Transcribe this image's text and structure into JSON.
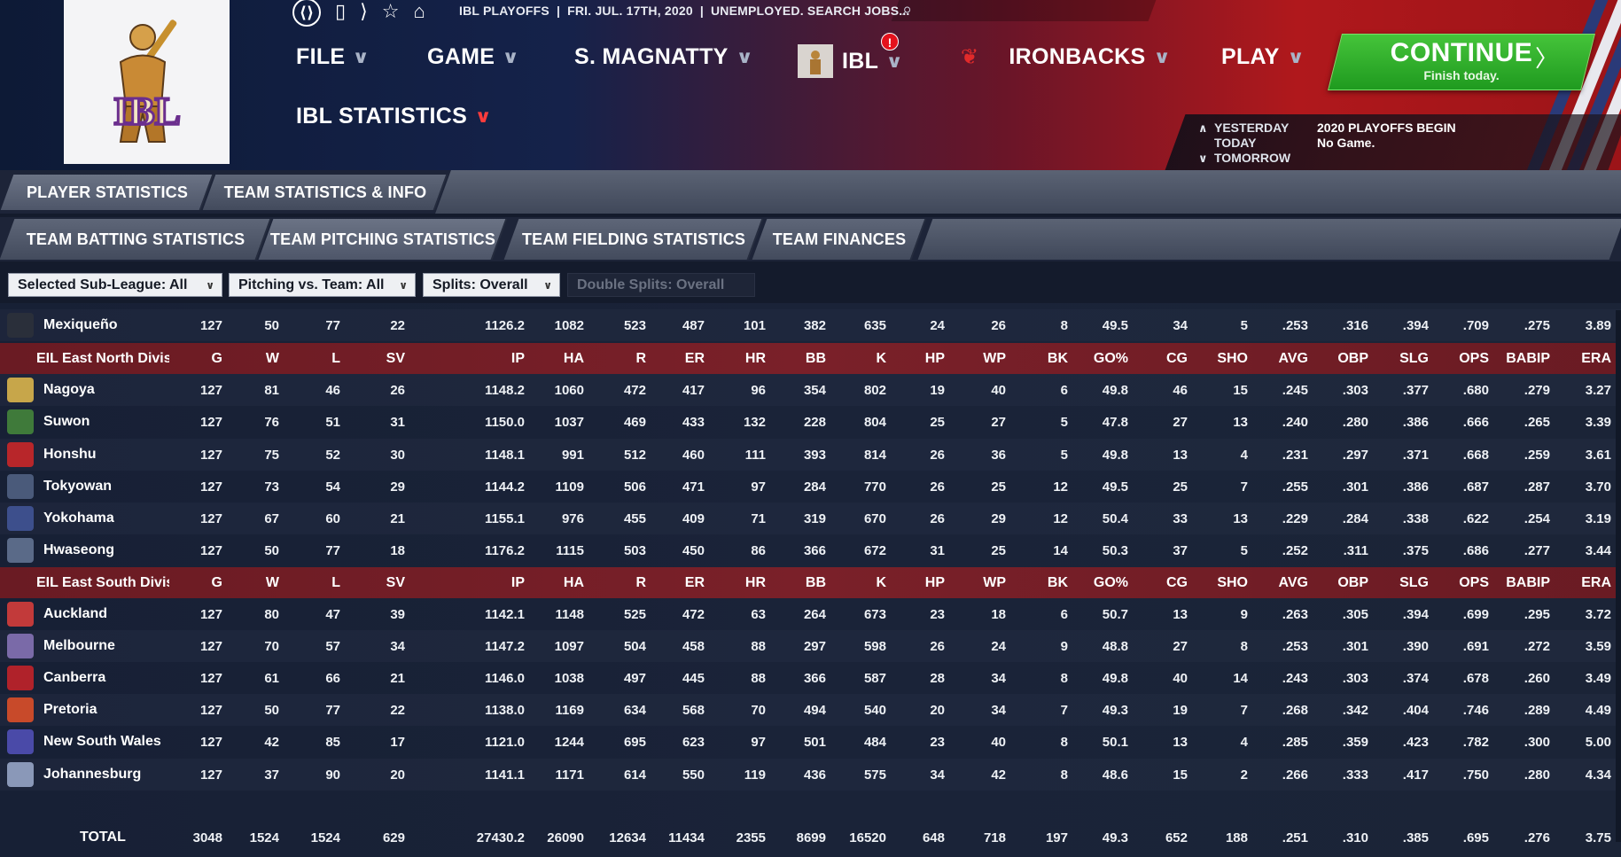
{
  "topnav": {
    "breadcrumbs": [
      "IBL PLAYOFFS",
      "FRI. JUL. 17TH, 2020",
      "UNEMPLOYED. SEARCH JOBS..."
    ],
    "menus": [
      {
        "id": "file",
        "label": "FILE"
      },
      {
        "id": "game",
        "label": "GAME"
      },
      {
        "id": "manager",
        "label": "S. MAGNATTY"
      },
      {
        "id": "ibl",
        "label": "IBL",
        "alert": "!"
      },
      {
        "id": "team",
        "label": "IRONBACKS"
      },
      {
        "id": "play",
        "label": "PLAY"
      }
    ],
    "page_menu": "IBL STATISTICS"
  },
  "logo": {
    "text": "IBL"
  },
  "continue": {
    "title": "CONTINUE",
    "subtitle": "Finish today.",
    "arrow": "〉"
  },
  "days": {
    "yesterday": "YESTERDAY",
    "today": "TODAY",
    "tomorrow": "TOMORROW",
    "event": "2020 PLAYOFFS BEGIN",
    "today_game": "No Game."
  },
  "tabs": [
    "PLAYER STATISTICS",
    "TEAM STATISTICS & INFO"
  ],
  "subtabs": [
    "TEAM BATTING STATISTICS",
    "TEAM PITCHING STATISTICS",
    "TEAM FIELDING STATISTICS",
    "TEAM FINANCES"
  ],
  "filters": [
    "Selected Sub-League: All",
    "Pitching vs. Team: All",
    "Splits: Overall",
    "Double Splits: Overall"
  ],
  "columns": [
    "G",
    "W",
    "L",
    "SV",
    "IP",
    "HA",
    "R",
    "ER",
    "HR",
    "BB",
    "K",
    "HP",
    "WP",
    "BK",
    "GO%",
    "CG",
    "SHO",
    "AVG",
    "OBP",
    "SLG",
    "OPS",
    "BABIP",
    "ERA"
  ],
  "rows": [
    {
      "type": "team",
      "name": "Mexiqueño",
      "logo": "#2a2f3a",
      "stats": [
        "127",
        "50",
        "77",
        "22",
        "1126.2",
        "1082",
        "523",
        "487",
        "101",
        "382",
        "635",
        "24",
        "26",
        "8",
        "49.5",
        "34",
        "5",
        ".253",
        ".316",
        ".394",
        ".709",
        ".275",
        "3.89"
      ]
    },
    {
      "type": "division",
      "name": "EIL East North Divis"
    },
    {
      "type": "team",
      "name": "Nagoya",
      "logo": "#c7a64a",
      "stats": [
        "127",
        "81",
        "46",
        "26",
        "1148.2",
        "1060",
        "472",
        "417",
        "96",
        "354",
        "802",
        "19",
        "40",
        "6",
        "49.8",
        "46",
        "15",
        ".245",
        ".303",
        ".377",
        ".680",
        ".279",
        "3.27"
      ]
    },
    {
      "type": "team",
      "name": "Suwon",
      "logo": "#3f7a3a",
      "stats": [
        "127",
        "76",
        "51",
        "31",
        "1150.0",
        "1037",
        "469",
        "433",
        "132",
        "228",
        "804",
        "25",
        "27",
        "5",
        "47.8",
        "27",
        "13",
        ".240",
        ".280",
        ".386",
        ".666",
        ".265",
        "3.39"
      ]
    },
    {
      "type": "team",
      "name": "Honshu",
      "logo": "#b8262a",
      "stats": [
        "127",
        "75",
        "52",
        "30",
        "1148.1",
        "991",
        "512",
        "460",
        "111",
        "393",
        "814",
        "26",
        "36",
        "5",
        "49.8",
        "13",
        "4",
        ".231",
        ".297",
        ".371",
        ".668",
        ".259",
        "3.61"
      ]
    },
    {
      "type": "team",
      "name": "Tokyowan",
      "logo": "#4a5a7a",
      "stats": [
        "127",
        "73",
        "54",
        "29",
        "1144.2",
        "1109",
        "506",
        "471",
        "97",
        "284",
        "770",
        "26",
        "25",
        "12",
        "49.5",
        "25",
        "7",
        ".255",
        ".301",
        ".386",
        ".687",
        ".287",
        "3.70"
      ]
    },
    {
      "type": "team",
      "name": "Yokohama",
      "logo": "#3d4f8c",
      "stats": [
        "127",
        "67",
        "60",
        "21",
        "1155.1",
        "976",
        "455",
        "409",
        "71",
        "319",
        "670",
        "26",
        "29",
        "12",
        "50.4",
        "33",
        "13",
        ".229",
        ".284",
        ".338",
        ".622",
        ".254",
        "3.19"
      ]
    },
    {
      "type": "team",
      "name": "Hwaseong",
      "logo": "#5a6a88",
      "stats": [
        "127",
        "50",
        "77",
        "18",
        "1176.2",
        "1115",
        "503",
        "450",
        "86",
        "366",
        "672",
        "31",
        "25",
        "14",
        "50.3",
        "37",
        "5",
        ".252",
        ".311",
        ".375",
        ".686",
        ".277",
        "3.44"
      ]
    },
    {
      "type": "division",
      "name": "EIL East South Divis"
    },
    {
      "type": "team",
      "name": "Auckland",
      "logo": "#c23a3a",
      "stats": [
        "127",
        "80",
        "47",
        "39",
        "1142.1",
        "1148",
        "525",
        "472",
        "63",
        "264",
        "673",
        "23",
        "18",
        "6",
        "50.7",
        "13",
        "9",
        ".263",
        ".305",
        ".394",
        ".699",
        ".295",
        "3.72"
      ]
    },
    {
      "type": "team",
      "name": "Melbourne",
      "logo": "#7a6aa8",
      "stats": [
        "127",
        "70",
        "57",
        "34",
        "1147.2",
        "1097",
        "504",
        "458",
        "88",
        "297",
        "598",
        "26",
        "24",
        "9",
        "48.8",
        "27",
        "8",
        ".253",
        ".301",
        ".390",
        ".691",
        ".272",
        "3.59"
      ]
    },
    {
      "type": "team",
      "name": "Canberra",
      "logo": "#b0222a",
      "stats": [
        "127",
        "61",
        "66",
        "21",
        "1146.0",
        "1038",
        "497",
        "445",
        "88",
        "366",
        "587",
        "28",
        "34",
        "8",
        "49.8",
        "40",
        "14",
        ".243",
        ".303",
        ".374",
        ".678",
        ".260",
        "3.49"
      ]
    },
    {
      "type": "team",
      "name": "Pretoria",
      "logo": "#c84a2a",
      "stats": [
        "127",
        "50",
        "77",
        "22",
        "1138.0",
        "1169",
        "634",
        "568",
        "70",
        "494",
        "540",
        "20",
        "34",
        "7",
        "49.3",
        "19",
        "7",
        ".268",
        ".342",
        ".404",
        ".746",
        ".289",
        "4.49"
      ]
    },
    {
      "type": "team",
      "name": "New South Wales",
      "logo": "#4a4aa8",
      "stats": [
        "127",
        "42",
        "85",
        "17",
        "1121.0",
        "1244",
        "695",
        "623",
        "97",
        "501",
        "484",
        "23",
        "40",
        "8",
        "50.1",
        "13",
        "4",
        ".285",
        ".359",
        ".423",
        ".782",
        ".300",
        "5.00"
      ]
    },
    {
      "type": "team",
      "name": "Johannesburg",
      "logo": "#8a98b8",
      "stats": [
        "127",
        "37",
        "90",
        "20",
        "1141.1",
        "1171",
        "614",
        "550",
        "119",
        "436",
        "575",
        "34",
        "42",
        "8",
        "48.6",
        "15",
        "2",
        ".266",
        ".333",
        ".417",
        ".750",
        ".280",
        "4.34"
      ]
    }
  ],
  "total": {
    "label": "TOTAL",
    "stats": [
      "3048",
      "1524",
      "1524",
      "629",
      "27430.2",
      "26090",
      "12634",
      "11434",
      "2355",
      "8699",
      "16520",
      "648",
      "718",
      "197",
      "49.3",
      "652",
      "188",
      ".251",
      ".310",
      ".385",
      ".695",
      ".276",
      "3.75"
    ]
  }
}
